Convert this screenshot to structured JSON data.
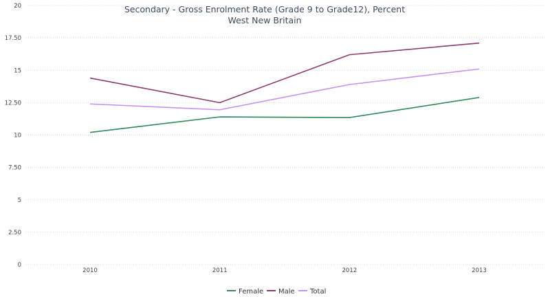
{
  "chart_data": {
    "type": "line",
    "title": "Secondary - Gross Enrolment Rate (Grade 9 to Grade12), Percent",
    "subtitle": "West New Britain",
    "xlabel": "",
    "ylabel": "",
    "categories": [
      "2010",
      "2011",
      "2012",
      "2013"
    ],
    "yticks": [
      "0",
      "2.50",
      "5",
      "7.50",
      "10",
      "12.50",
      "15",
      "17.50",
      "20"
    ],
    "ylim": [
      0,
      20
    ],
    "grid": true,
    "legend_position": "bottom-center",
    "series": [
      {
        "name": "Female",
        "color": "#2e8b57",
        "values": [
          10.2,
          11.4,
          11.35,
          12.9
        ]
      },
      {
        "name": "Male",
        "color": "#8b3a6b",
        "values": [
          14.4,
          12.5,
          16.2,
          17.1
        ]
      },
      {
        "name": "Total",
        "color": "#c990f0",
        "values": [
          12.4,
          11.95,
          13.9,
          15.1
        ]
      }
    ]
  }
}
